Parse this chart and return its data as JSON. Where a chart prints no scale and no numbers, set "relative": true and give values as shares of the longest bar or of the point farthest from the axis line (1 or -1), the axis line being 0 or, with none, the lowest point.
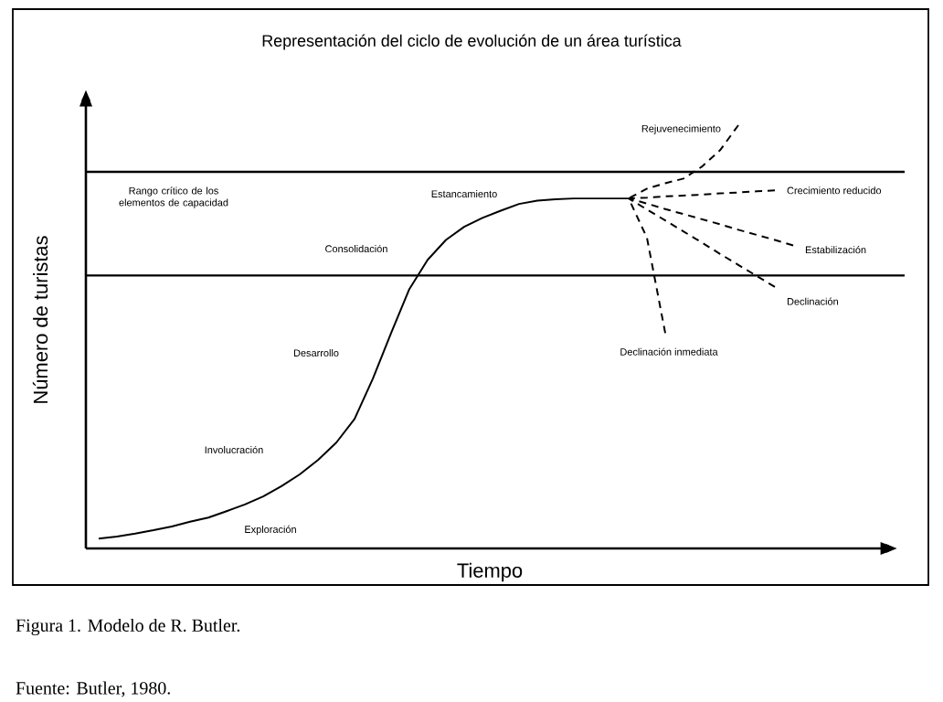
{
  "chart_data": {
    "type": "line",
    "title": "Representación del ciclo de evolución de un área turística",
    "xlabel": "Tiempo",
    "ylabel": "Número de turistas",
    "relative": true,
    "categories": [
      null,
      null,
      null,
      null,
      null,
      null,
      null,
      null,
      null,
      null,
      null,
      null,
      null,
      null,
      null,
      null,
      null,
      null,
      null,
      null,
      null,
      null,
      null,
      null,
      null,
      null,
      null,
      null,
      null,
      null,
      null,
      null,
      null,
      null,
      null,
      null,
      null,
      null,
      null,
      null
    ],
    "series": [
      {
        "color": "#000000",
        "line_style": "solid",
        "values": [
          0.023,
          0.028,
          0.035,
          0.043,
          0.052,
          0.063,
          0.073,
          0.088,
          0.104,
          0.123,
          0.147,
          0.175,
          0.209,
          0.25,
          0.306,
          0.401,
          0.509,
          0.613,
          0.682,
          0.729,
          0.76,
          0.781,
          0.798,
          0.814,
          0.822,
          0.825,
          0.827,
          0.827,
          0.827,
          0.827,
          null,
          null,
          null,
          null,
          null,
          null,
          null,
          null,
          null,
          null
        ]
      },
      {
        "name": "Rejuvenecimiento",
        "color": "#000000",
        "line_style": "dashed",
        "values": [
          null,
          null,
          null,
          null,
          null,
          null,
          null,
          null,
          null,
          null,
          null,
          null,
          null,
          null,
          null,
          null,
          null,
          null,
          null,
          null,
          null,
          null,
          null,
          null,
          null,
          null,
          null,
          null,
          null,
          0.827,
          0.85,
          0.863,
          0.874,
          0.902,
          0.941,
          1,
          null,
          null,
          null,
          null
        ]
      },
      {
        "name": "Crecimiento reducido",
        "color": "#000000",
        "line_style": "dashed",
        "values": [
          null,
          null,
          null,
          null,
          null,
          null,
          null,
          null,
          null,
          null,
          null,
          null,
          null,
          null,
          null,
          null,
          null,
          null,
          null,
          null,
          null,
          null,
          null,
          null,
          null,
          null,
          null,
          null,
          null,
          0.827,
          0.829,
          0.832,
          0.834,
          0.836,
          0.839,
          0.841,
          0.844,
          0.846,
          null,
          null
        ]
      },
      {
        "name": "Estabilización",
        "color": "#000000",
        "line_style": "dashed",
        "values": [
          null,
          null,
          null,
          null,
          null,
          null,
          null,
          null,
          null,
          null,
          null,
          null,
          null,
          null,
          null,
          null,
          null,
          null,
          null,
          null,
          null,
          null,
          null,
          null,
          null,
          null,
          null,
          null,
          null,
          0.827,
          0.815,
          0.802,
          0.79,
          0.778,
          0.766,
          0.753,
          0.741,
          0.729,
          0.716,
          null
        ]
      },
      {
        "name": "Declinación",
        "color": "#000000",
        "line_style": "dashed",
        "values": [
          null,
          null,
          null,
          null,
          null,
          null,
          null,
          null,
          null,
          null,
          null,
          null,
          null,
          null,
          null,
          null,
          null,
          null,
          null,
          null,
          null,
          null,
          null,
          null,
          null,
          null,
          null,
          null,
          null,
          0.827,
          0.801,
          0.775,
          0.749,
          0.723,
          0.696,
          0.67,
          0.644,
          0.618,
          null,
          null
        ]
      },
      {
        "name": "Declinación inmediata",
        "color": "#000000",
        "line_style": "dashed",
        "values": [
          null,
          null,
          null,
          null,
          null,
          null,
          null,
          null,
          null,
          null,
          null,
          null,
          null,
          null,
          null,
          null,
          null,
          null,
          null,
          null,
          null,
          null,
          null,
          null,
          null,
          null,
          null,
          null,
          null,
          0.827,
          0.734,
          0.509,
          null,
          null,
          null,
          null,
          null,
          null,
          null,
          null
        ]
      }
    ],
    "ref_lines": [
      {
        "axis": "y",
        "value": 0.89,
        "label": "Rango crítico de los elementos de capacidad"
      },
      {
        "axis": "y",
        "value": 0.645
      }
    ],
    "annotations": [
      "Exploración",
      "Involucración",
      "Desarrollo",
      "Consolidación",
      "Estancamiento",
      "Figura 1. Modelo de R. Butler.",
      "Fuente: Butler, 1980."
    ]
  }
}
